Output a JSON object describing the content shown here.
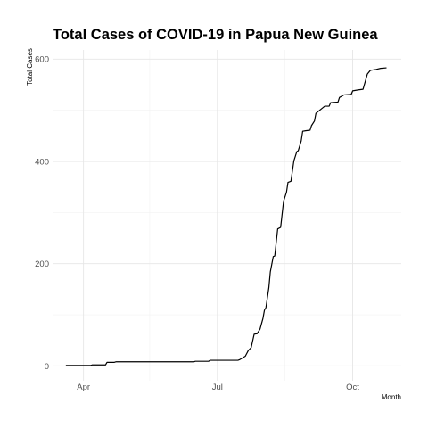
{
  "chart_data": {
    "type": "line",
    "title": "Total Cases of COVID-19 in Papua New Guinea",
    "xlabel": "Month",
    "ylabel": "Total Cases",
    "x_type": "date",
    "xlim": [
      "2020-03-11",
      "2020-11-03"
    ],
    "ylim": [
      -29,
      618
    ],
    "x_ticks": [
      {
        "date": "2020-04-01",
        "label": "Apr"
      },
      {
        "date": "2020-07-01",
        "label": "Jul"
      },
      {
        "date": "2020-10-01",
        "label": "Oct"
      }
    ],
    "x_minor_gridlines": [
      "2020-05-16",
      "2020-08-16"
    ],
    "y_ticks": [
      0,
      200,
      400,
      600
    ],
    "y_minor_gridlines": [
      100,
      300,
      500
    ],
    "grid": true,
    "legend": "none",
    "series": [
      {
        "color": "#000000",
        "points": [
          [
            "2020-03-20",
            1
          ],
          [
            "2020-04-06",
            1
          ],
          [
            "2020-04-07",
            2
          ],
          [
            "2020-04-16",
            2
          ],
          [
            "2020-04-17",
            7
          ],
          [
            "2020-04-22",
            7
          ],
          [
            "2020-04-23",
            8
          ],
          [
            "2020-06-15",
            8
          ],
          [
            "2020-06-16",
            9
          ],
          [
            "2020-06-25",
            9
          ],
          [
            "2020-06-26",
            11
          ],
          [
            "2020-07-15",
            11
          ],
          [
            "2020-07-16",
            12
          ],
          [
            "2020-07-20",
            19
          ],
          [
            "2020-07-22",
            30
          ],
          [
            "2020-07-24",
            36
          ],
          [
            "2020-07-26",
            62
          ],
          [
            "2020-07-28",
            63
          ],
          [
            "2020-07-30",
            72
          ],
          [
            "2020-08-01",
            93
          ],
          [
            "2020-08-02",
            109
          ],
          [
            "2020-08-03",
            114
          ],
          [
            "2020-08-05",
            153
          ],
          [
            "2020-08-06",
            184
          ],
          [
            "2020-08-08",
            214
          ],
          [
            "2020-08-09",
            215
          ],
          [
            "2020-08-11",
            268
          ],
          [
            "2020-08-13",
            271
          ],
          [
            "2020-08-15",
            322
          ],
          [
            "2020-08-17",
            340
          ],
          [
            "2020-08-18",
            359
          ],
          [
            "2020-08-20",
            361
          ],
          [
            "2020-08-22",
            401
          ],
          [
            "2020-08-24",
            419
          ],
          [
            "2020-08-25",
            421
          ],
          [
            "2020-08-27",
            440
          ],
          [
            "2020-08-28",
            459
          ],
          [
            "2020-08-30",
            460
          ],
          [
            "2020-09-02",
            461
          ],
          [
            "2020-09-03",
            470
          ],
          [
            "2020-09-05",
            479
          ],
          [
            "2020-09-06",
            494
          ],
          [
            "2020-09-09",
            501
          ],
          [
            "2020-09-12",
            508
          ],
          [
            "2020-09-15",
            508
          ],
          [
            "2020-09-16",
            515
          ],
          [
            "2020-09-21",
            516
          ],
          [
            "2020-09-22",
            525
          ],
          [
            "2020-09-25",
            530
          ],
          [
            "2020-09-30",
            531
          ],
          [
            "2020-10-01",
            538
          ],
          [
            "2020-10-05",
            540
          ],
          [
            "2020-10-08",
            541
          ],
          [
            "2020-10-09",
            551
          ],
          [
            "2020-10-11",
            571
          ],
          [
            "2020-10-13",
            578
          ],
          [
            "2020-10-17",
            580
          ],
          [
            "2020-10-20",
            582
          ],
          [
            "2020-10-24",
            583
          ]
        ]
      }
    ]
  }
}
